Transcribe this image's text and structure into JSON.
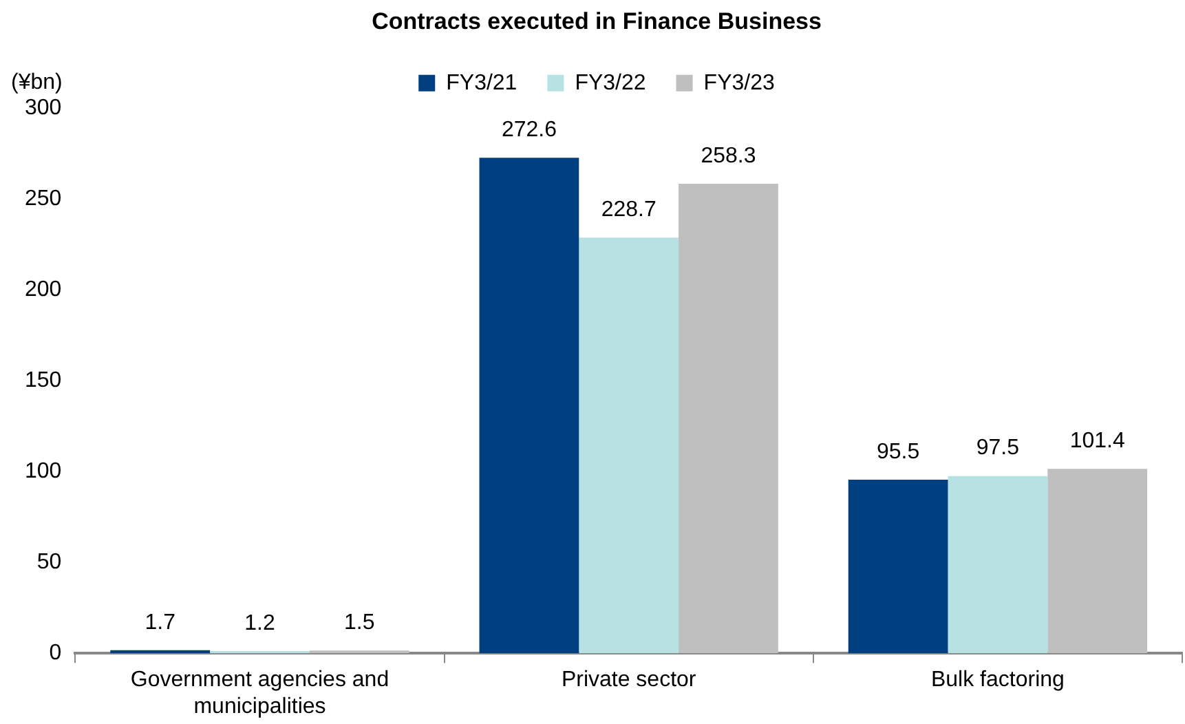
{
  "chart_data": {
    "type": "bar",
    "title": "Contracts executed in Finance Business",
    "ylabel": "(¥bn)",
    "categories": [
      "Government agencies and municipalities",
      "Private sector",
      "Bulk factoring"
    ],
    "series": [
      {
        "name": "FY3/21",
        "color": "#003f80",
        "values": [
          1.7,
          272.6,
          95.5
        ]
      },
      {
        "name": "FY3/22",
        "color": "#b8e1e4",
        "values": [
          1.2,
          228.7,
          97.5
        ]
      },
      {
        "name": "FY3/23",
        "color": "#bfbfbf",
        "values": [
          1.5,
          258.3,
          101.4
        ]
      }
    ],
    "ylim": [
      0,
      300
    ],
    "yticks": [
      0,
      50,
      100,
      150,
      200,
      250,
      300
    ],
    "grid": false,
    "legend": "top",
    "data_labels": true
  }
}
